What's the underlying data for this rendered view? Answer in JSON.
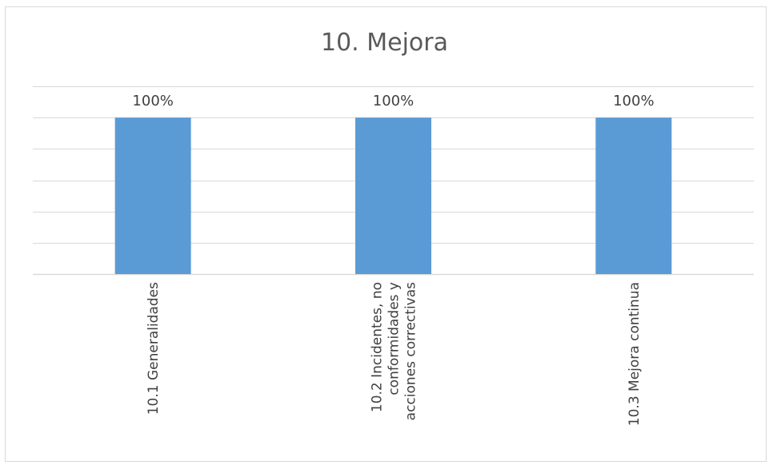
{
  "chart_data": {
    "type": "bar",
    "title": "10. Mejora",
    "categories": [
      [
        "10.1 Generalidades"
      ],
      [
        "10.2 Incidentes, no",
        "conformidades y",
        "acciones correctivas"
      ],
      [
        "10.3 Mejora continua"
      ]
    ],
    "values": [
      100,
      100,
      100
    ],
    "data_labels": [
      "100%",
      "100%",
      "100%"
    ],
    "ylim": [
      0,
      120
    ],
    "ytick_step": 20,
    "grid": true,
    "legend": "none",
    "bar_color": "#5b9bd5",
    "grid_color": "#d9d9d9",
    "text_color": "#404040",
    "title_color": "#595959"
  }
}
